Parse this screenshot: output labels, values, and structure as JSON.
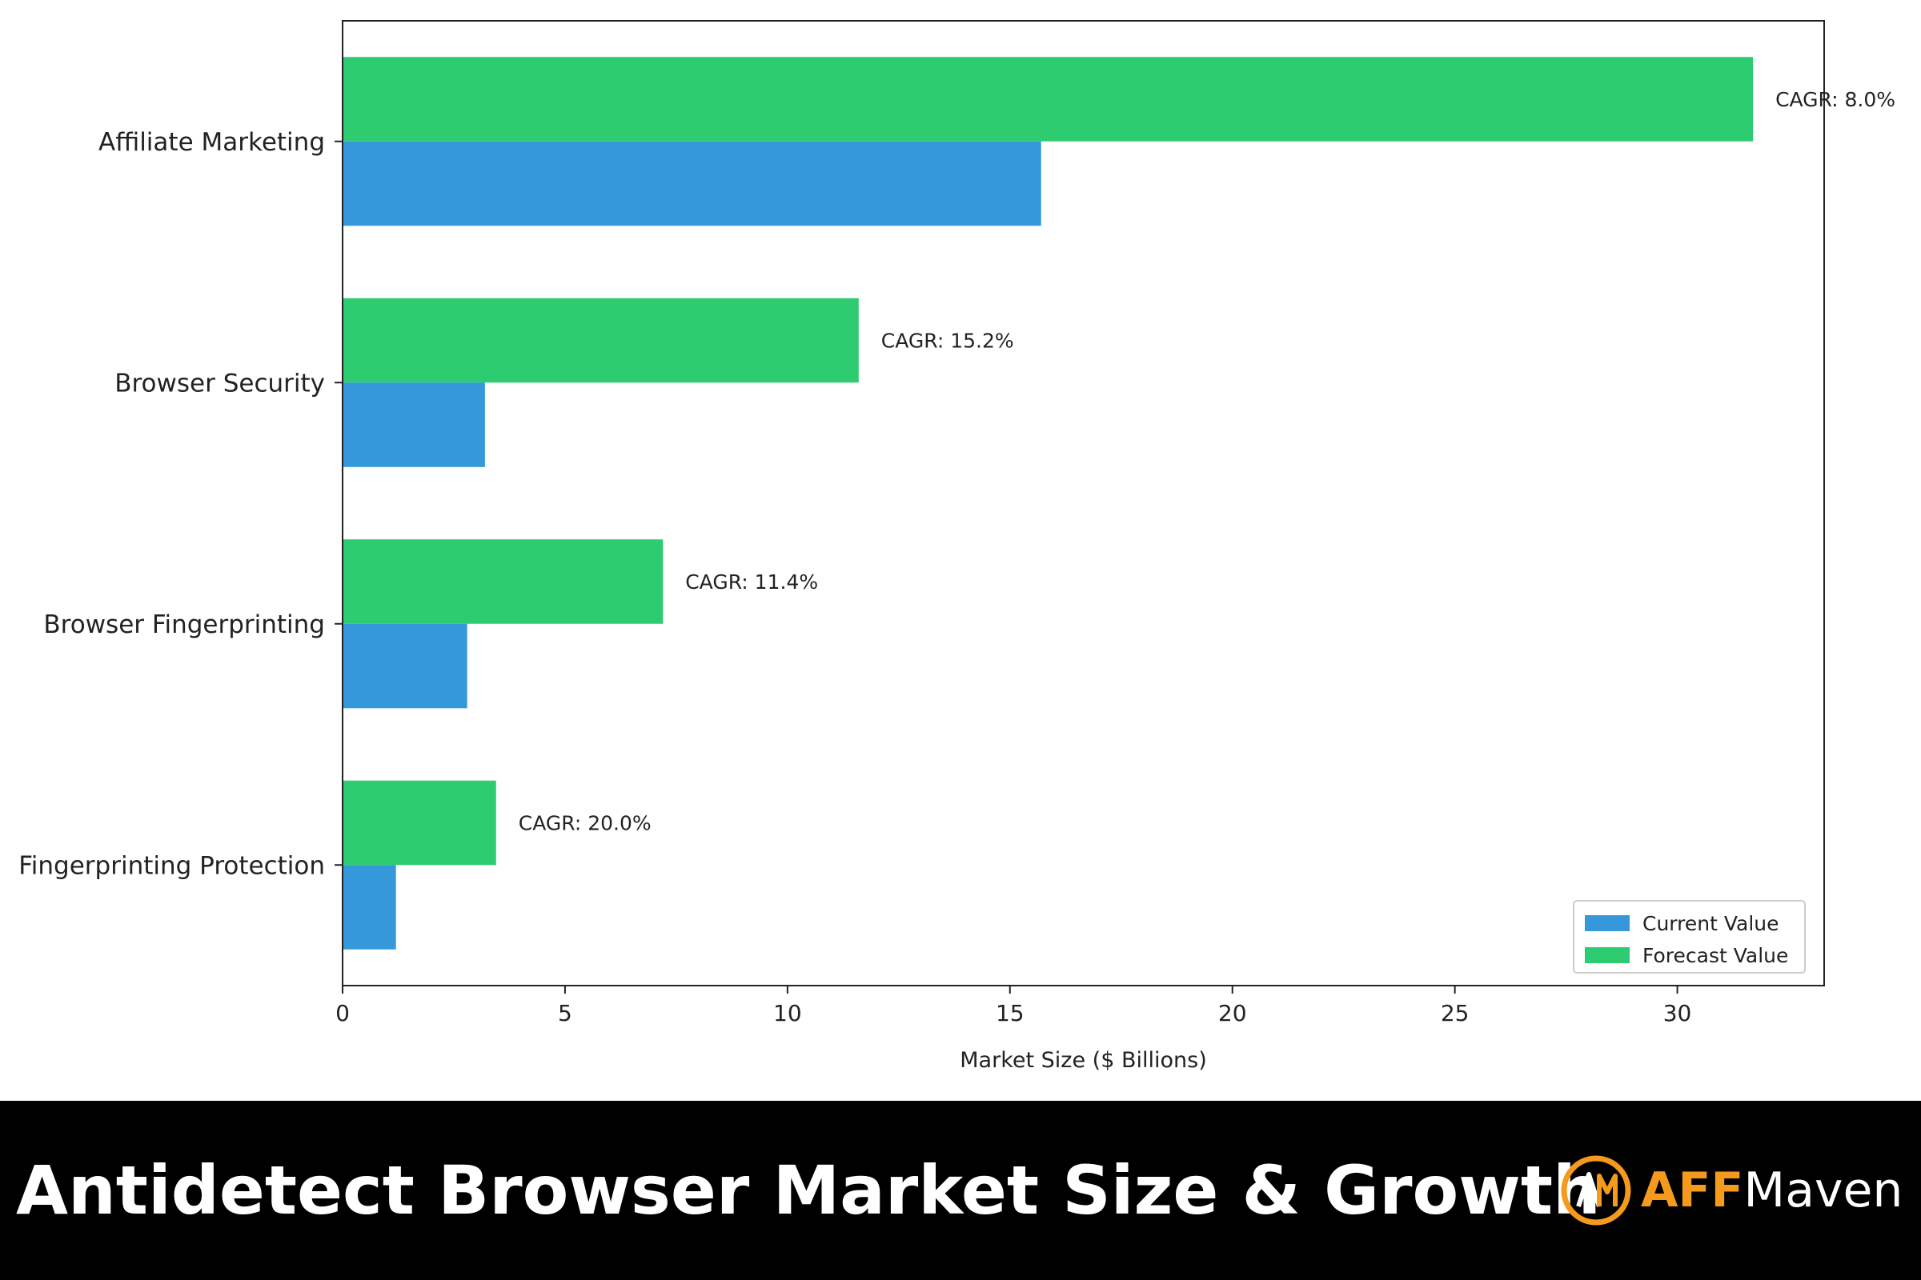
{
  "chart_data": {
    "type": "bar",
    "orientation": "horizontal",
    "categories": [
      "Affiliate Marketing",
      "Browser Security",
      "Browser Fingerprinting",
      "Fingerprinting Protection"
    ],
    "series": [
      {
        "name": "Current Value",
        "values": [
          15.7,
          3.2,
          2.8,
          1.2
        ],
        "color": "#3498db"
      },
      {
        "name": "Forecast Value",
        "values": [
          31.7,
          11.6,
          7.2,
          3.45
        ],
        "color": "#2ecc71"
      }
    ],
    "annotations": [
      "CAGR: 8.0%",
      "CAGR: 15.2%",
      "CAGR: 11.4%",
      "CAGR: 20.0%"
    ],
    "xlabel": "Market Size ($ Billions)",
    "xlim": [
      0,
      33.3
    ],
    "xticks": [
      0,
      5,
      10,
      15,
      20,
      25,
      30
    ],
    "legend_position": "lower-right",
    "grid": false
  },
  "footer": {
    "title": "Antidetect Browser Market Size & Growth",
    "brand_part1": "AFF",
    "brand_part2": "Maven",
    "brand_accent_color": "#f59a1c"
  }
}
